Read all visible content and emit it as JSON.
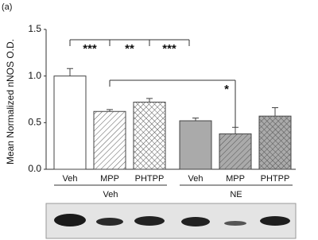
{
  "chart_data": {
    "type": "bar",
    "panel_label": "(a)",
    "ylabel": "Mean Normalized nNOS O.D.",
    "categories": [
      "Veh",
      "MPP",
      "PHTPP",
      "Veh",
      "MPP",
      "PHTPP"
    ],
    "groups": [
      "Veh",
      "NE"
    ],
    "values": [
      1.0,
      0.62,
      0.72,
      0.52,
      0.38,
      0.57
    ],
    "errors": [
      0.08,
      0.02,
      0.04,
      0.03,
      0.07,
      0.09
    ],
    "colors": [
      "#ffffff",
      "#ffffff",
      "#ffffff",
      "#aaaaaa",
      "#aaaaaa",
      "#aaaaaa"
    ],
    "patterns": [
      "none",
      "diagonal",
      "crosshatch",
      "none",
      "diagonal",
      "crosshatch"
    ],
    "ylim": [
      0,
      1.5
    ],
    "yticks": [
      {
        "value": 0,
        "label": "0.0"
      },
      {
        "value": 0.5,
        "label": "0.5"
      },
      {
        "value": 1,
        "label": "1.0"
      },
      {
        "value": 1.5,
        "label": "1.5"
      }
    ],
    "annotations": [
      "***",
      "**",
      "***",
      "*"
    ]
  }
}
